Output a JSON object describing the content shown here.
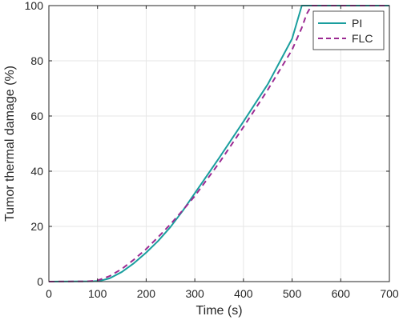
{
  "chart_data": {
    "type": "line",
    "title": "",
    "xlabel": "Time (s)",
    "ylabel": "Tumor thermal damage (%)",
    "xlim": [
      0,
      700
    ],
    "ylim": [
      0,
      100
    ],
    "xticks": [
      0,
      100,
      200,
      300,
      400,
      500,
      600,
      700
    ],
    "yticks": [
      0,
      20,
      40,
      60,
      80,
      100
    ],
    "grid": true,
    "legend_position": "top-right",
    "series": [
      {
        "name": "PI",
        "color": "#1a9e9e",
        "dash": "solid",
        "x": [
          0,
          90,
          100,
          110,
          125,
          150,
          175,
          200,
          225,
          250,
          275,
          300,
          350,
          400,
          450,
          500,
          520,
          540,
          600,
          700
        ],
        "y": [
          0,
          0.1,
          0.2,
          0.5,
          1.2,
          3.5,
          6.7,
          10.5,
          14.8,
          19.8,
          25.6,
          32.0,
          44.8,
          58.0,
          71.5,
          88.0,
          100,
          100,
          100,
          100
        ]
      },
      {
        "name": "FLC",
        "color": "#9b2a92",
        "dash": "dashed",
        "x": [
          0,
          80,
          100,
          125,
          150,
          175,
          200,
          225,
          250,
          275,
          300,
          350,
          400,
          450,
          500,
          520,
          530,
          540,
          600,
          700
        ],
        "y": [
          0,
          0.1,
          0.4,
          2.0,
          4.6,
          8.0,
          11.8,
          16.2,
          20.8,
          25.8,
          31.0,
          43.0,
          56.0,
          69.5,
          84.0,
          92.0,
          97.0,
          100,
          100,
          100
        ]
      }
    ]
  }
}
